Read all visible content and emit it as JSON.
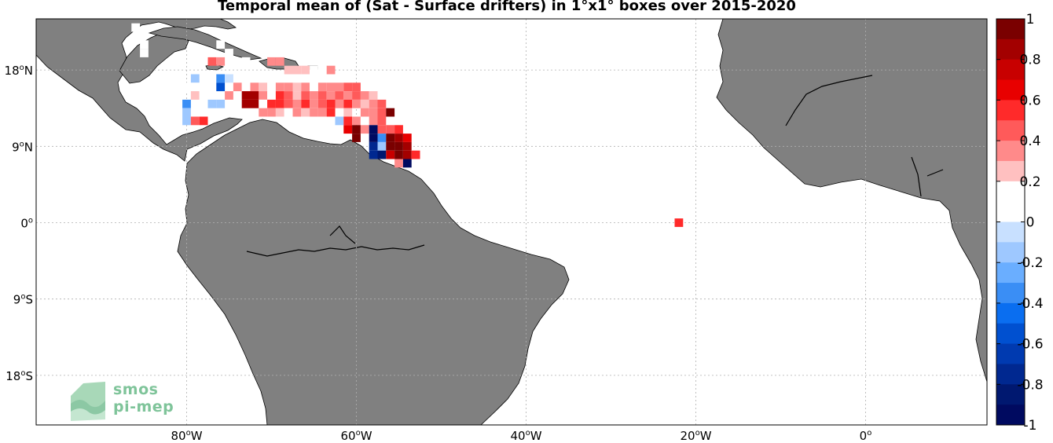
{
  "title": "Temporal mean of (Sat - Surface drifters) in 1°x1° boxes over 2015-2020",
  "x_ticks": [
    {
      "label": "80",
      "suffix": "W",
      "lon": -80
    },
    {
      "label": "60",
      "suffix": "W",
      "lon": -60
    },
    {
      "label": "40",
      "suffix": "W",
      "lon": -40
    },
    {
      "label": "20",
      "suffix": "W",
      "lon": -20
    },
    {
      "label": "0",
      "suffix": "",
      "lon": 0
    }
  ],
  "y_ticks": [
    {
      "label": "18",
      "suffix": "N",
      "lat": 18
    },
    {
      "label": "9",
      "suffix": "N",
      "lat": 9
    },
    {
      "label": "0",
      "suffix": "",
      "lat": 0
    },
    {
      "label": "9",
      "suffix": "S",
      "lat": -9
    },
    {
      "label": "18",
      "suffix": "S",
      "lat": -18
    }
  ],
  "colorbar": {
    "labels": [
      "1",
      "0.8",
      "0.6",
      "0.4",
      "0.2",
      "0",
      "-0.2",
      "-0.4",
      "-0.6",
      "-0.8",
      "-1"
    ],
    "colors": [
      "#7a0000",
      "#a30000",
      "#c80000",
      "#e80000",
      "#ff2a2a",
      "#ff5a5a",
      "#ff8a8a",
      "#ffc0c0",
      "#ffffff",
      "#ffffff",
      "#c8e0ff",
      "#9ec8ff",
      "#6aaeff",
      "#3a8ef5",
      "#0a6ef0",
      "#0050d0",
      "#003ab0",
      "#002890",
      "#001870",
      "#000a60"
    ],
    "range": [
      -1,
      1
    ]
  },
  "colors": {
    "land": "#808080",
    "ocean": "#ffffff",
    "grid": "#b0b0b0",
    "coast": "#000000"
  },
  "logo": {
    "line1": "smos",
    "line2": "pi-mep"
  },
  "grid_cells": [
    {
      "lon": -86,
      "lat": 23,
      "v": 0.15
    },
    {
      "lon": -85,
      "lat": 20,
      "v": 0.1
    },
    {
      "lon": -85,
      "lat": 21,
      "v": 0.1
    },
    {
      "lon": -76,
      "lat": 21,
      "v": 0.15
    },
    {
      "lon": -75,
      "lat": 20,
      "v": 0.1
    },
    {
      "lon": -77,
      "lat": 19,
      "v": 0.45
    },
    {
      "lon": -76,
      "lat": 19,
      "v": 0.3
    },
    {
      "lon": -73,
      "lat": 19,
      "v": 0.15
    },
    {
      "lon": -70,
      "lat": 19,
      "v": 0.3
    },
    {
      "lon": -69,
      "lat": 19,
      "v": 0.3
    },
    {
      "lon": -68,
      "lat": 18,
      "v": 0.25
    },
    {
      "lon": -67,
      "lat": 18,
      "v": 0.25
    },
    {
      "lon": -66,
      "lat": 18,
      "v": 0.25
    },
    {
      "lon": -65,
      "lat": 18,
      "v": 0.2
    },
    {
      "lon": -64,
      "lat": 18,
      "v": 0.15
    },
    {
      "lon": -63,
      "lat": 18,
      "v": 0.3
    },
    {
      "lon": -79,
      "lat": 17,
      "v": -0.2
    },
    {
      "lon": -76,
      "lat": 17,
      "v": -0.35
    },
    {
      "lon": -75,
      "lat": 17,
      "v": -0.05
    },
    {
      "lon": -80,
      "lat": 16,
      "v": 0.2
    },
    {
      "lon": -79,
      "lat": 16,
      "v": 0.15
    },
    {
      "lon": -76,
      "lat": 16,
      "v": -0.5
    },
    {
      "lon": -74,
      "lat": 16,
      "v": 0.3
    },
    {
      "lon": -73,
      "lat": 16,
      "v": 0.15
    },
    {
      "lon": -72,
      "lat": 16,
      "v": 0.3
    },
    {
      "lon": -71,
      "lat": 16,
      "v": 0.25
    },
    {
      "lon": -70,
      "lat": 16,
      "v": 0.2
    },
    {
      "lon": -69,
      "lat": 16,
      "v": 0.3
    },
    {
      "lon": -68,
      "lat": 16,
      "v": 0.3
    },
    {
      "lon": -67,
      "lat": 16,
      "v": 0.25
    },
    {
      "lon": -66,
      "lat": 16,
      "v": 0.35
    },
    {
      "lon": -65,
      "lat": 16,
      "v": 0.2
    },
    {
      "lon": -64,
      "lat": 16,
      "v": 0.35
    },
    {
      "lon": -63,
      "lat": 16,
      "v": 0.3
    },
    {
      "lon": -62,
      "lat": 16,
      "v": 0.3
    },
    {
      "lon": -61,
      "lat": 16,
      "v": 0.45
    },
    {
      "lon": -60,
      "lat": 16,
      "v": 0.45
    },
    {
      "lon": -79,
      "lat": 15,
      "v": 0.25
    },
    {
      "lon": -78,
      "lat": 15,
      "v": 0.15
    },
    {
      "lon": -75,
      "lat": 15,
      "v": 0.3
    },
    {
      "lon": -73,
      "lat": 15,
      "v": 0.85
    },
    {
      "lon": -72,
      "lat": 15,
      "v": 0.85
    },
    {
      "lon": -71,
      "lat": 15,
      "v": 0.3
    },
    {
      "lon": -70,
      "lat": 15,
      "v": 0.2
    },
    {
      "lon": -69,
      "lat": 15,
      "v": 0.55
    },
    {
      "lon": -68,
      "lat": 15,
      "v": 0.45
    },
    {
      "lon": -67,
      "lat": 15,
      "v": 0.25
    },
    {
      "lon": -66,
      "lat": 15,
      "v": 0.5
    },
    {
      "lon": -65,
      "lat": 15,
      "v": 0.3
    },
    {
      "lon": -64,
      "lat": 15,
      "v": 0.5
    },
    {
      "lon": -63,
      "lat": 15,
      "v": 0.3
    },
    {
      "lon": -62,
      "lat": 15,
      "v": 0.45
    },
    {
      "lon": -61,
      "lat": 15,
      "v": 0.3
    },
    {
      "lon": -60,
      "lat": 15,
      "v": 0.5
    },
    {
      "lon": -59,
      "lat": 15,
      "v": 0.3
    },
    {
      "lon": -58,
      "lat": 15,
      "v": 0.25
    },
    {
      "lon": -80,
      "lat": 14,
      "v": -0.3
    },
    {
      "lon": -77,
      "lat": 14,
      "v": -0.15
    },
    {
      "lon": -76,
      "lat": 14,
      "v": -0.15
    },
    {
      "lon": -73,
      "lat": 14,
      "v": 0.85
    },
    {
      "lon": -72,
      "lat": 14,
      "v": 0.85
    },
    {
      "lon": -71,
      "lat": 14,
      "v": 0.2
    },
    {
      "lon": -70,
      "lat": 14,
      "v": 0.55
    },
    {
      "lon": -69,
      "lat": 14,
      "v": 0.55
    },
    {
      "lon": -68,
      "lat": 14,
      "v": 0.5
    },
    {
      "lon": -67,
      "lat": 14,
      "v": 0.3
    },
    {
      "lon": -66,
      "lat": 14,
      "v": 0.55
    },
    {
      "lon": -65,
      "lat": 14,
      "v": 0.3
    },
    {
      "lon": -64,
      "lat": 14,
      "v": 0.45
    },
    {
      "lon": -63,
      "lat": 14,
      "v": 0.55
    },
    {
      "lon": -62,
      "lat": 14,
      "v": 0.3
    },
    {
      "lon": -61,
      "lat": 14,
      "v": 0.55
    },
    {
      "lon": -60,
      "lat": 14,
      "v": 0.3
    },
    {
      "lon": -59,
      "lat": 14,
      "v": 0.25
    },
    {
      "lon": -58,
      "lat": 14,
      "v": 0.3
    },
    {
      "lon": -57,
      "lat": 14,
      "v": 0.5
    },
    {
      "lon": -80,
      "lat": 13,
      "v": -0.2
    },
    {
      "lon": -71,
      "lat": 13,
      "v": 0.3
    },
    {
      "lon": -70,
      "lat": 13,
      "v": 0.3
    },
    {
      "lon": -69,
      "lat": 13,
      "v": 0.25
    },
    {
      "lon": -68,
      "lat": 13,
      "v": 0.2
    },
    {
      "lon": -67,
      "lat": 13,
      "v": 0.3
    },
    {
      "lon": -66,
      "lat": 13,
      "v": 0.25
    },
    {
      "lon": -65,
      "lat": 13,
      "v": 0.3
    },
    {
      "lon": -64,
      "lat": 13,
      "v": 0.3
    },
    {
      "lon": -63,
      "lat": 13,
      "v": 0.55
    },
    {
      "lon": -61,
      "lat": 13,
      "v": 0.25
    },
    {
      "lon": -59,
      "lat": 13,
      "v": 0.3
    },
    {
      "lon": -58,
      "lat": 13,
      "v": 0.3
    },
    {
      "lon": -57,
      "lat": 13,
      "v": 0.5
    },
    {
      "lon": -56,
      "lat": 13,
      "v": 0.9
    },
    {
      "lon": -80,
      "lat": 12,
      "v": -0.15
    },
    {
      "lon": -79,
      "lat": 12,
      "v": 0.45
    },
    {
      "lon": -78,
      "lat": 12,
      "v": 0.55
    },
    {
      "lon": -62,
      "lat": 12,
      "v": -0.2
    },
    {
      "lon": -61,
      "lat": 12,
      "v": 0.55
    },
    {
      "lon": -60,
      "lat": 12,
      "v": 0.3
    },
    {
      "lon": -59,
      "lat": 12,
      "v": 0.2
    },
    {
      "lon": -58,
      "lat": 12,
      "v": 0.3
    },
    {
      "lon": -57,
      "lat": 12,
      "v": 0.45
    },
    {
      "lon": -61,
      "lat": 11,
      "v": 0.7
    },
    {
      "lon": -60,
      "lat": 11,
      "v": 0.9
    },
    {
      "lon": -59,
      "lat": 11,
      "v": 0.3
    },
    {
      "lon": -58,
      "lat": 11,
      "v": -0.95
    },
    {
      "lon": -57,
      "lat": 11,
      "v": 0.5
    },
    {
      "lon": -56,
      "lat": 11,
      "v": 0.45
    },
    {
      "lon": -55,
      "lat": 11,
      "v": 0.55
    },
    {
      "lon": -60,
      "lat": 10,
      "v": 0.95
    },
    {
      "lon": -58,
      "lat": 10,
      "v": -0.95
    },
    {
      "lon": -57,
      "lat": 10,
      "v": -0.3
    },
    {
      "lon": -56,
      "lat": 10,
      "v": 0.95
    },
    {
      "lon": -55,
      "lat": 10,
      "v": 0.85
    },
    {
      "lon": -54,
      "lat": 10,
      "v": 0.7
    },
    {
      "lon": -58,
      "lat": 9,
      "v": -0.75
    },
    {
      "lon": -57,
      "lat": 9,
      "v": -0.15
    },
    {
      "lon": -56,
      "lat": 9,
      "v": 0.95
    },
    {
      "lon": -55,
      "lat": 9,
      "v": 0.95
    },
    {
      "lon": -54,
      "lat": 9,
      "v": 0.85
    },
    {
      "lon": -58,
      "lat": 8,
      "v": -0.75
    },
    {
      "lon": -57,
      "lat": 8,
      "v": -0.8
    },
    {
      "lon": -56,
      "lat": 8,
      "v": 0.75
    },
    {
      "lon": -55,
      "lat": 8,
      "v": 0.95
    },
    {
      "lon": -54,
      "lat": 8,
      "v": 0.85
    },
    {
      "lon": -53,
      "lat": 8,
      "v": 0.55
    },
    {
      "lon": -55,
      "lat": 7,
      "v": 0.3
    },
    {
      "lon": -54,
      "lat": 7,
      "v": -0.95
    },
    {
      "lon": -22,
      "lat": 2,
      "v": 0.15
    },
    {
      "lon": -22,
      "lat": 0,
      "v": 0.55
    }
  ]
}
